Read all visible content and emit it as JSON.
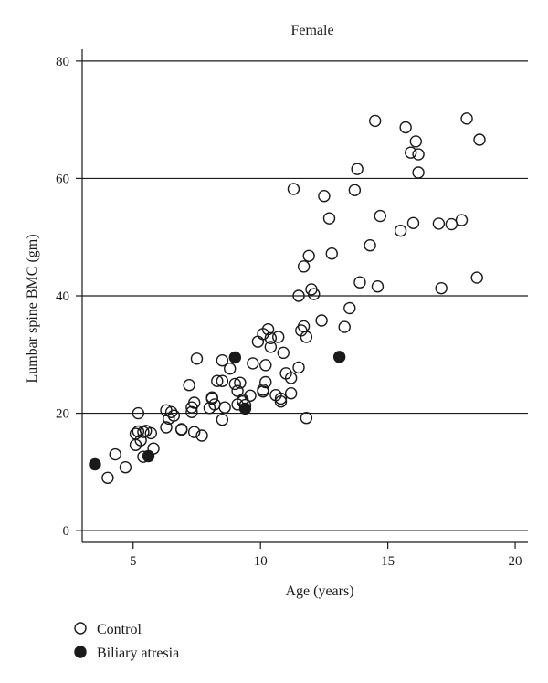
{
  "chart_data": {
    "type": "scatter",
    "title": "Female",
    "xlabel": "Age (years)",
    "ylabel": "Lumbar spine BMC (gm)",
    "xlim": [
      3,
      20.5
    ],
    "ylim": [
      -2,
      82
    ],
    "xticks": [
      5,
      10,
      15,
      20
    ],
    "yticks": [
      0,
      20,
      40,
      60,
      80
    ],
    "grid": "horizontal",
    "legend_position": "bottom-left",
    "series": [
      {
        "name": "Control",
        "marker": "open-circle",
        "color": "#1a1a1a",
        "points": [
          [
            4.0,
            9.0
          ],
          [
            4.3,
            13.0
          ],
          [
            4.7,
            10.8
          ],
          [
            5.1,
            14.6
          ],
          [
            5.1,
            16.5
          ],
          [
            5.2,
            16.9
          ],
          [
            5.2,
            20.0
          ],
          [
            5.3,
            15.4
          ],
          [
            5.4,
            16.8
          ],
          [
            5.4,
            12.6
          ],
          [
            5.5,
            17.0
          ],
          [
            5.7,
            16.6
          ],
          [
            5.8,
            14.0
          ],
          [
            6.3,
            17.6
          ],
          [
            6.3,
            20.5
          ],
          [
            6.4,
            19.1
          ],
          [
            6.5,
            20.2
          ],
          [
            6.6,
            19.6
          ],
          [
            6.9,
            17.2
          ],
          [
            6.9,
            17.3
          ],
          [
            7.2,
            24.8
          ],
          [
            7.3,
            20.2
          ],
          [
            7.3,
            21.0
          ],
          [
            7.4,
            21.8
          ],
          [
            7.4,
            16.8
          ],
          [
            7.5,
            29.3
          ],
          [
            7.7,
            16.2
          ],
          [
            8.0,
            20.9
          ],
          [
            8.1,
            22.5
          ],
          [
            8.1,
            22.7
          ],
          [
            8.2,
            21.5
          ],
          [
            8.3,
            25.5
          ],
          [
            8.5,
            25.5
          ],
          [
            8.5,
            29.0
          ],
          [
            8.5,
            18.9
          ],
          [
            8.6,
            21.0
          ],
          [
            8.8,
            27.6
          ],
          [
            9.0,
            25.0
          ],
          [
            9.1,
            21.5
          ],
          [
            9.1,
            23.8
          ],
          [
            9.2,
            25.2
          ],
          [
            9.3,
            22.0
          ],
          [
            9.3,
            22.3
          ],
          [
            9.4,
            21.4
          ],
          [
            9.6,
            23.0
          ],
          [
            9.7,
            28.5
          ],
          [
            9.9,
            32.2
          ],
          [
            10.1,
            33.5
          ],
          [
            10.1,
            23.7
          ],
          [
            10.1,
            24.0
          ],
          [
            10.2,
            28.2
          ],
          [
            10.2,
            25.3
          ],
          [
            10.3,
            34.3
          ],
          [
            10.4,
            32.8
          ],
          [
            10.4,
            31.3
          ],
          [
            10.6,
            23.1
          ],
          [
            10.7,
            33.0
          ],
          [
            10.8,
            22.0
          ],
          [
            10.8,
            22.5
          ],
          [
            10.9,
            30.3
          ],
          [
            11.0,
            26.8
          ],
          [
            11.2,
            23.4
          ],
          [
            11.2,
            26.0
          ],
          [
            11.3,
            58.2
          ],
          [
            11.5,
            27.8
          ],
          [
            11.5,
            40.0
          ],
          [
            11.6,
            34.1
          ],
          [
            11.7,
            34.8
          ],
          [
            11.7,
            45.0
          ],
          [
            11.8,
            33.0
          ],
          [
            11.8,
            19.2
          ],
          [
            11.9,
            46.8
          ],
          [
            12.0,
            41.1
          ],
          [
            12.1,
            40.3
          ],
          [
            12.4,
            35.8
          ],
          [
            12.5,
            57.0
          ],
          [
            12.7,
            53.2
          ],
          [
            12.8,
            47.2
          ],
          [
            13.3,
            34.7
          ],
          [
            13.5,
            37.9
          ],
          [
            13.7,
            58.0
          ],
          [
            13.8,
            61.6
          ],
          [
            13.9,
            42.3
          ],
          [
            14.3,
            48.6
          ],
          [
            14.5,
            69.8
          ],
          [
            14.6,
            41.6
          ],
          [
            14.7,
            53.6
          ],
          [
            15.5,
            51.1
          ],
          [
            15.7,
            68.7
          ],
          [
            15.9,
            64.4
          ],
          [
            16.0,
            52.4
          ],
          [
            16.1,
            66.3
          ],
          [
            16.2,
            64.1
          ],
          [
            16.2,
            61.0
          ],
          [
            17.0,
            52.3
          ],
          [
            17.1,
            41.3
          ],
          [
            17.5,
            52.2
          ],
          [
            17.9,
            52.9
          ],
          [
            18.1,
            70.2
          ],
          [
            18.5,
            43.1
          ],
          [
            18.6,
            66.6
          ]
        ]
      },
      {
        "name": "Biliary atresia",
        "marker": "filled-circle",
        "color": "#1a1a1a",
        "points": [
          [
            3.5,
            11.3
          ],
          [
            5.6,
            12.7
          ],
          [
            9.0,
            29.5
          ],
          [
            9.4,
            20.8
          ],
          [
            13.1,
            29.6
          ]
        ]
      }
    ]
  }
}
